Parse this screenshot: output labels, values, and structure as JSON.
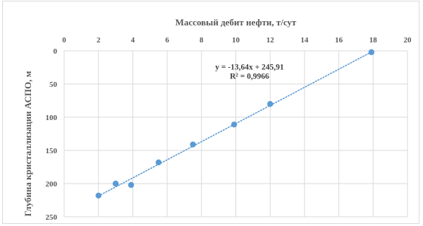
{
  "chart_data": {
    "type": "scatter",
    "xlabel": "Массовый дебит нефти, т/сут",
    "ylabel": "Глубина кристаллизации АСПО, м",
    "xlim": [
      0,
      20
    ],
    "ylim": [
      0,
      250
    ],
    "y_axis_inverted": true,
    "x_axis_position": "top",
    "x_ticks": [
      "0",
      "2",
      "4",
      "6",
      "8",
      "10",
      "12",
      "14",
      "16",
      "18",
      "20"
    ],
    "y_ticks": [
      "0",
      "50",
      "100",
      "150",
      "200",
      "250"
    ],
    "grid": true,
    "series": [
      {
        "x": [
          2.0,
          3.0,
          3.9,
          5.5,
          7.5,
          9.9,
          12.0,
          17.9
        ],
        "y": [
          218,
          200,
          202,
          168,
          141,
          111,
          80,
          2
        ]
      }
    ],
    "trendline": {
      "slope": -13.64,
      "intercept": 245.91,
      "style": "dotted",
      "equation": "y = -13,64x + 245,91",
      "r_squared": "R² = 0,9966"
    },
    "colors": {
      "marker": "#5b9bd5",
      "trendline": "#5b9bd5",
      "grid": "#d9d9d9",
      "text": "#595959"
    }
  }
}
